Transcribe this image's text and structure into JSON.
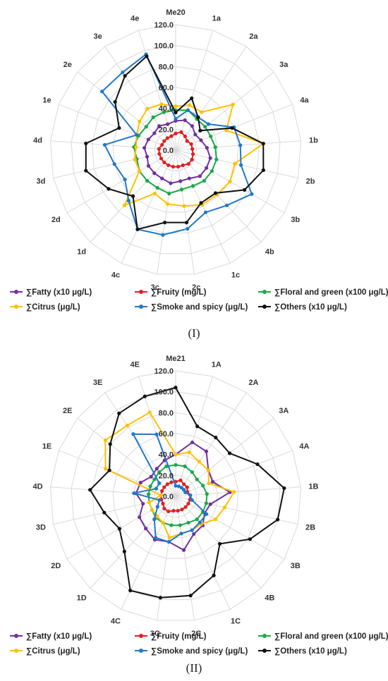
{
  "chart_data": [
    {
      "type": "radar",
      "title": "Me20",
      "panel_label": "(I)",
      "categories": [
        "Me20",
        "1a",
        "2a",
        "3a",
        "4a",
        "1b",
        "2b",
        "3b",
        "4b",
        "1c",
        "2c",
        "3c",
        "4c",
        "1d",
        "2d",
        "3d",
        "4d",
        "1e",
        "2e",
        "3e",
        "4e"
      ],
      "rmax": 120,
      "ticks": [
        0,
        20,
        40,
        60,
        80,
        100,
        120
      ],
      "tick_labels": [
        "0.0",
        "20.0",
        "40.0",
        "60.0",
        "80.0",
        "100.0",
        "120.0"
      ],
      "series": [
        {
          "name": "∑Fatty (x10 μg/L)",
          "color": "#7030a0",
          "values": [
            28,
            30,
            28,
            24,
            26,
            30,
            34,
            34,
            34,
            30,
            30,
            32,
            30,
            30,
            30,
            28,
            30,
            28,
            26,
            28,
            26
          ]
        },
        {
          "name": "∑Fruity (mg/L)",
          "color": "#e02020",
          "values": [
            16,
            18,
            16,
            14,
            16,
            16,
            17,
            18,
            18,
            16,
            16,
            16,
            16,
            16,
            16,
            16,
            16,
            14,
            14,
            14,
            14
          ]
        },
        {
          "name": "∑Floral and green (x100 μg/L)",
          "color": "#1aa84a",
          "values": [
            38,
            40,
            36,
            36,
            36,
            38,
            40,
            40,
            40,
            38,
            38,
            42,
            40,
            40,
            40,
            38,
            40,
            38,
            36,
            38,
            38
          ]
        },
        {
          "name": "∑Citrus (μg/L)",
          "color": "#ffc000",
          "values": [
            42,
            45,
            44,
            70,
            52,
            84,
            58,
            60,
            58,
            58,
            54,
            52,
            46,
            72,
            40,
            40,
            38,
            40,
            44,
            48,
            46
          ]
        },
        {
          "name": "∑Smoke and spicy (μg/L)",
          "color": "#1f78c8",
          "values": [
            30,
            40,
            38,
            40,
            60,
            62,
            64,
            84,
            72,
            66,
            76,
            82,
            84,
            66,
            56,
            60,
            68,
            40,
            90,
            90,
            96
          ]
        },
        {
          "name": "∑Others (x10 μg/L)",
          "color": "#111111",
          "values": [
            36,
            52,
            38,
            30,
            58,
            84,
            86,
            76,
            56,
            56,
            70,
            70,
            84,
            60,
            74,
            88,
            86,
            58,
            74,
            86,
            94
          ]
        }
      ]
    },
    {
      "type": "radar",
      "title": "Me21",
      "panel_label": "(II)",
      "categories": [
        "Me21",
        "1A",
        "2A",
        "3A",
        "4A",
        "1B",
        "2B",
        "3B",
        "4B",
        "1C",
        "2C",
        "3C",
        "4C",
        "1D",
        "2D",
        "3D",
        "4D",
        "1E",
        "2E",
        "3E",
        "4E"
      ],
      "rmax": 120,
      "ticks": [
        0,
        20,
        40,
        60,
        80,
        100,
        120
      ],
      "tick_labels": [
        "0.0",
        "20.0",
        "40.0",
        "60.0",
        "80.0",
        "100.0",
        "120.0"
      ],
      "series": [
        {
          "name": "∑Fatty (x10 μg/L)",
          "color": "#7030a0",
          "values": [
            40,
            54,
            52,
            40,
            38,
            52,
            34,
            32,
            38,
            40,
            52,
            44,
            46,
            42,
            40,
            32,
            38,
            36,
            30,
            32,
            36
          ]
        },
        {
          "name": "∑Fruity (mg/L)",
          "color": "#e02020",
          "values": [
            14,
            16,
            14,
            14,
            12,
            14,
            14,
            14,
            14,
            14,
            14,
            14,
            16,
            16,
            14,
            14,
            14,
            14,
            14,
            14,
            14
          ]
        },
        {
          "name": "∑Floral and green (x100 μg/L)",
          "color": "#1aa84a",
          "values": [
            30,
            30,
            28,
            26,
            28,
            30,
            30,
            30,
            30,
            28,
            28,
            28,
            28,
            28,
            26,
            26,
            26,
            26,
            26,
            28,
            30
          ]
        },
        {
          "name": "∑Citrus (μg/L)",
          "color": "#ffc000",
          "values": [
            40,
            44,
            40,
            40,
            34,
            56,
            48,
            44,
            36,
            36,
            36,
            40,
            28,
            26,
            26,
            26,
            14,
            72,
            86,
            82,
            84
          ]
        },
        {
          "name": "∑Smoke and spicy (μg/L)",
          "color": "#1f78c8",
          "values": [
            10,
            10,
            10,
            10,
            10,
            14,
            16,
            34,
            34,
            36,
            36,
            44,
            44,
            30,
            20,
            16,
            40,
            20,
            20,
            72,
            62
          ]
        },
        {
          "name": "∑Others (x10 μg/L)",
          "color": "#111111",
          "values": [
            104,
            70,
            68,
            66,
            84,
            104,
            100,
            82,
            62,
            84,
            96,
            98,
            100,
            72,
            62,
            70,
            82,
            68,
            80,
            96,
            100
          ]
        }
      ]
    }
  ]
}
